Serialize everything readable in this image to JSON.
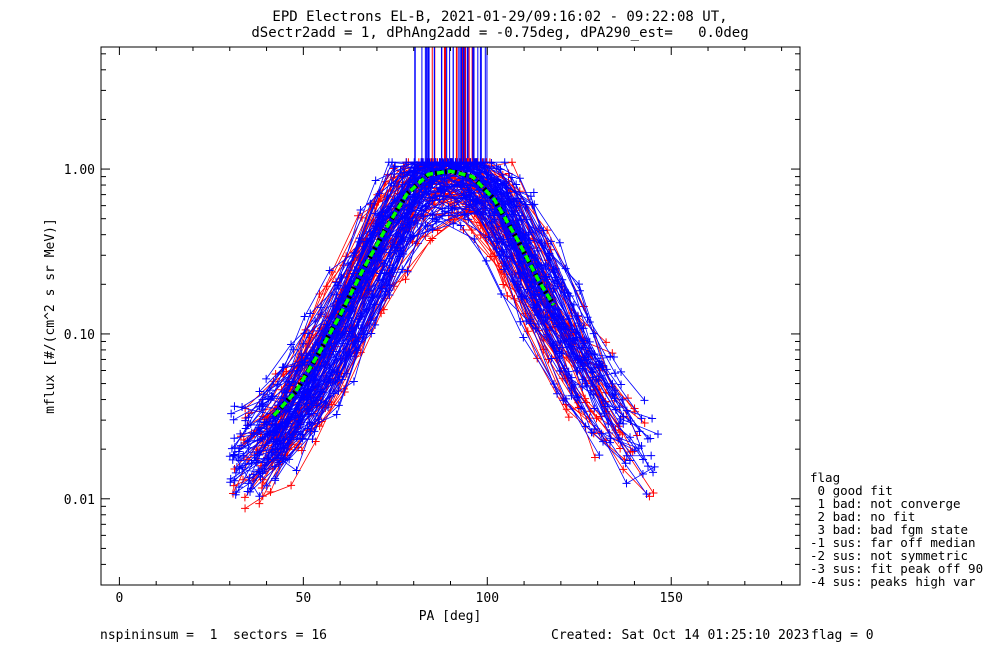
{
  "header": {
    "line1": "EPD Electrons EL-B, 2021-01-29/09:16:02 - 09:22:08 UT,",
    "line2": "dSectr2add = 1, dPhAng2add = -0.75deg, dPA290_est=   0.0deg"
  },
  "footer": {
    "left": "nspininsum =  1  sectors = 16",
    "created": "Created: Sat Oct 14 01:25:10 2023",
    "flag": "flag = 0"
  },
  "legend": {
    "title": "flag",
    "items": [
      " 0 good fit",
      " 1 bad: not converge",
      " 2 bad: no fit",
      " 3 bad: bad fgm state",
      "-1 sus: far off median",
      "-2 sus: not symmetric",
      "-3 sus: fit peak off 90",
      "-4 sus: peaks high var"
    ]
  },
  "colors": {
    "red": "#ff0000",
    "blue": "#0000ff",
    "fit_green": "#00ff00",
    "fit_black": "#000000",
    "axis": "#000000"
  },
  "chart_data": {
    "type": "line",
    "xlabel": "PA [deg]",
    "ylabel": "mflux [#/(cm^2 s sr MeV)]",
    "xlim": [
      -5,
      185
    ],
    "ylim": [
      0.003,
      5.5
    ],
    "yscale": "log",
    "xticks": [
      0,
      50,
      100,
      150
    ],
    "xtick_labels": [
      "0",
      "50",
      "100",
      "150"
    ],
    "yticks": [
      0.01,
      0.1,
      1.0
    ],
    "ytick_labels": [
      "0.01",
      "0.10",
      "1.00"
    ],
    "spike_region": {
      "x": [
        80,
        100
      ],
      "y_from": 1.1
    },
    "fit_curve": {
      "x": [
        42,
        48,
        54,
        60,
        66,
        72,
        78,
        84,
        90,
        96,
        102,
        108,
        114,
        118
      ],
      "y": [
        0.032,
        0.045,
        0.075,
        0.13,
        0.24,
        0.42,
        0.7,
        0.93,
        0.97,
        0.9,
        0.65,
        0.38,
        0.21,
        0.15
      ]
    },
    "series_profile": {
      "x": [
        34,
        40,
        46,
        52,
        58,
        64,
        70,
        76,
        82,
        90,
        98,
        104,
        110,
        116,
        122,
        128,
        134,
        140,
        146
      ],
      "y": [
        0.017,
        0.022,
        0.03,
        0.048,
        0.085,
        0.16,
        0.3,
        0.55,
        0.85,
        0.9,
        0.82,
        0.55,
        0.3,
        0.17,
        0.09,
        0.055,
        0.035,
        0.024,
        0.018
      ]
    },
    "series": [
      {
        "color": "red",
        "count": 55
      },
      {
        "color": "blue",
        "count": 90
      }
    ]
  }
}
